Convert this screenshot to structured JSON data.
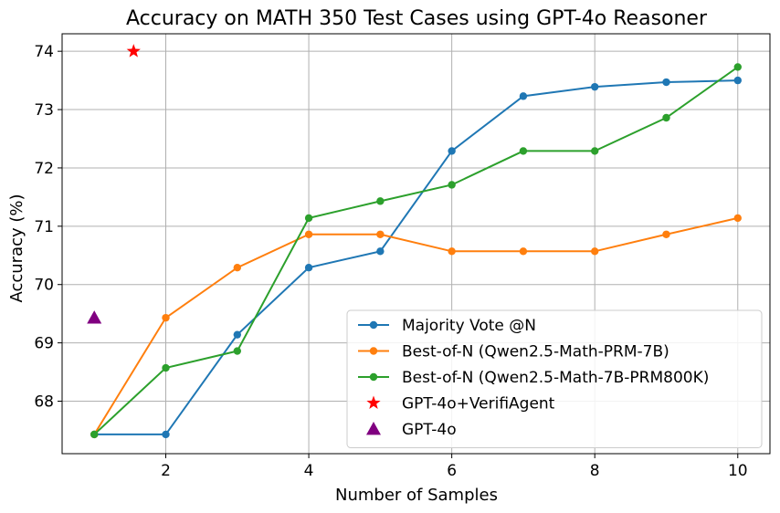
{
  "chart_data": {
    "type": "line",
    "title": "Accuracy on MATH 350 Test Cases using GPT-4o Reasoner",
    "xlabel": "Number of Samples",
    "ylabel": "Accuracy (%)",
    "xlim": [
      0.55,
      10.45
    ],
    "ylim": [
      67.1,
      74.3
    ],
    "xticks": [
      2,
      4,
      6,
      8,
      10
    ],
    "yticks": [
      68,
      69,
      70,
      71,
      72,
      73,
      74
    ],
    "grid": true,
    "legend_position": "lower-right",
    "series": [
      {
        "name": "Majority Vote @N",
        "color": "#1f77b4",
        "marker": "circle",
        "x": [
          1,
          2,
          3,
          4,
          5,
          6,
          7,
          8,
          9,
          10
        ],
        "y": [
          67.43,
          67.43,
          69.14,
          70.29,
          70.57,
          72.29,
          73.23,
          73.39,
          73.47,
          73.5
        ]
      },
      {
        "name": "Best-of-N (Qwen2.5-Math-PRM-7B)",
        "color": "#ff7f0e",
        "marker": "circle",
        "x": [
          1,
          2,
          3,
          4,
          5,
          6,
          7,
          8,
          9,
          10
        ],
        "y": [
          67.43,
          69.43,
          70.29,
          70.86,
          70.86,
          70.57,
          70.57,
          70.57,
          70.86,
          71.14
        ]
      },
      {
        "name": "Best-of-N (Qwen2.5-Math-7B-PRM800K)",
        "color": "#2ca02c",
        "marker": "circle",
        "x": [
          1,
          2,
          3,
          4,
          5,
          6,
          7,
          8,
          9,
          10
        ],
        "y": [
          67.43,
          68.57,
          68.86,
          71.14,
          71.43,
          71.71,
          72.29,
          72.29,
          72.86,
          73.73
        ]
      },
      {
        "name": "GPT-4o+VerifiAgent",
        "color": "#ff0000",
        "marker": "star",
        "x": [
          1.55
        ],
        "y": [
          74.0
        ]
      },
      {
        "name": "GPT-4o",
        "color": "#800080",
        "marker": "triangle",
        "x": [
          1.0
        ],
        "y": [
          69.43
        ]
      }
    ]
  }
}
